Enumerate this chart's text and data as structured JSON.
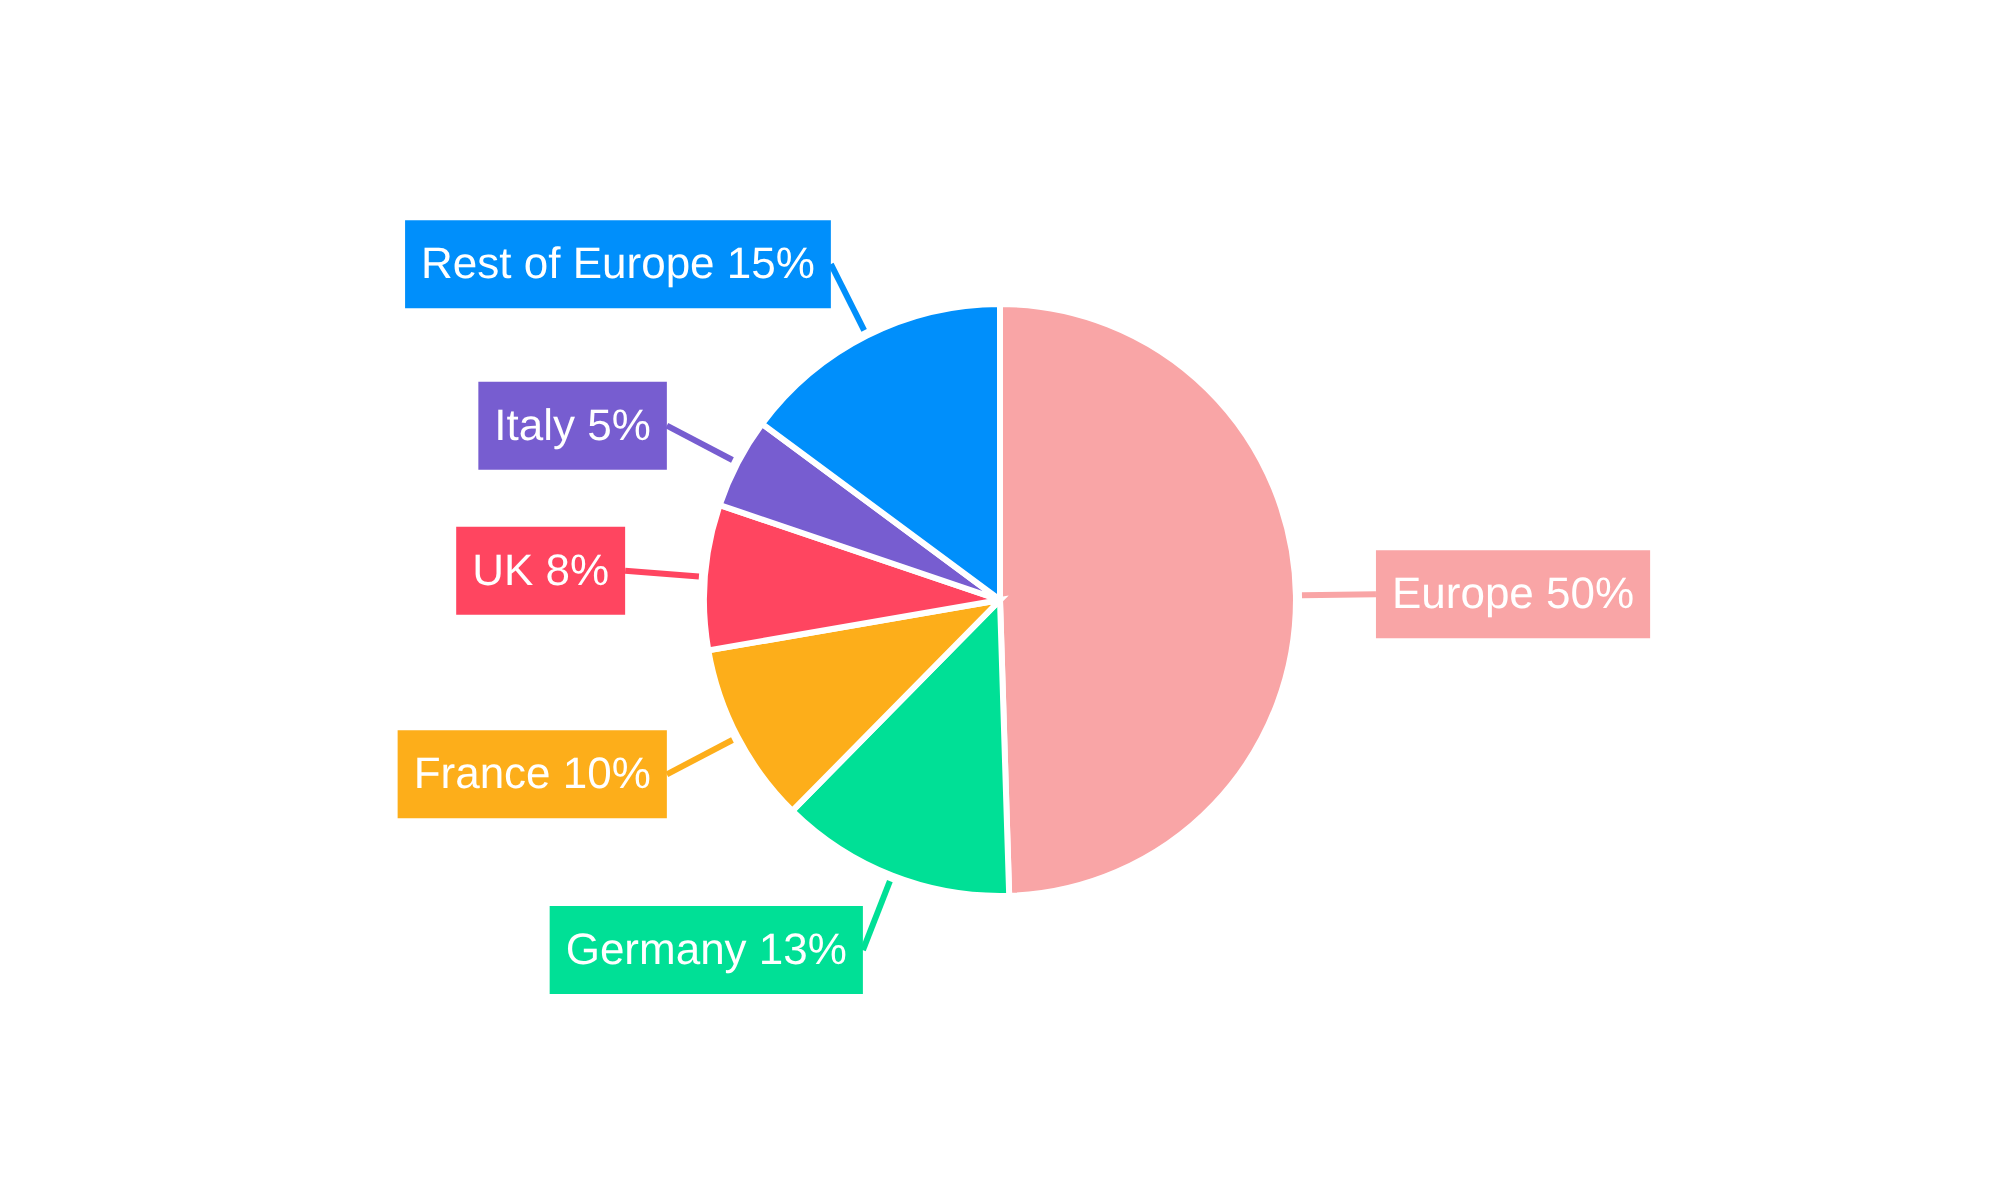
{
  "chart_data": {
    "type": "pie",
    "categories": [
      "Europe",
      "Germany",
      "France",
      "UK",
      "Italy",
      "Rest of Europe"
    ],
    "values": [
      50,
      13,
      10,
      8,
      5,
      15
    ],
    "value_labels": [
      "50%",
      "13%",
      "10%",
      "8%",
      "5%",
      "15%"
    ],
    "colors": [
      "#f9a5a6",
      "#00e096",
      "#fdae1a",
      "#ff4560",
      "#775dd0",
      "#008ffb"
    ]
  }
}
